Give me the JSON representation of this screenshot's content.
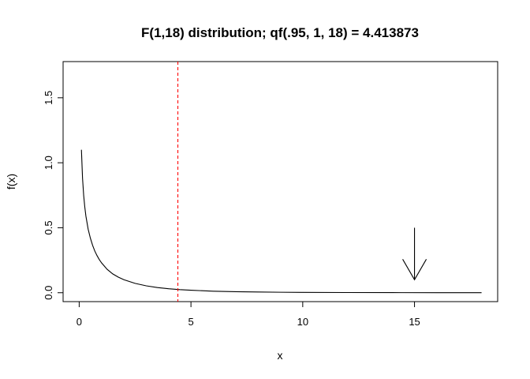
{
  "chart_data": {
    "type": "line",
    "title": "F(1,18) distribution; qf(.95, 1, 18) = 4.413873",
    "xlabel": "x",
    "ylabel": "f(x)",
    "xlim": [
      -0.72,
      18.72
    ],
    "ylim": [
      -0.0684,
      1.7784
    ],
    "xticks": [
      0,
      5,
      10,
      15
    ],
    "xtick_labels": [
      "0",
      "5",
      "10",
      "15"
    ],
    "yticks": [
      0.0,
      0.5,
      1.0,
      1.5
    ],
    "ytick_labels": [
      "0.0",
      "0.5",
      "1.0",
      "1.5"
    ],
    "grid": false,
    "series": [
      {
        "name": "",
        "color": "#000000",
        "x": [
          0.1,
          0.15,
          0.2,
          0.25,
          0.3,
          0.4,
          0.5,
          0.6,
          0.7,
          0.8,
          0.9,
          1.0,
          1.25,
          1.5,
          1.75,
          2.0,
          2.5,
          3.0,
          3.5,
          4.0,
          4.5,
          5.0,
          6.0,
          7.0,
          8.0,
          9.0,
          10.0,
          12.0,
          14.0,
          16.0,
          18.0
        ],
        "y": [
          1.1,
          0.88,
          0.75,
          0.66,
          0.59,
          0.49,
          0.42,
          0.365,
          0.32,
          0.285,
          0.255,
          0.23,
          0.18,
          0.145,
          0.12,
          0.1,
          0.072,
          0.053,
          0.04,
          0.031,
          0.024,
          0.019,
          0.012,
          0.008,
          0.0055,
          0.0038,
          0.0027,
          0.0014,
          0.0008,
          0.0004,
          0.0002
        ]
      }
    ],
    "vline": {
      "x": 4.413873,
      "color": "#ff0000",
      "style": "dashed"
    },
    "arrow": {
      "x": 15,
      "y_from": 0.5,
      "y_to": 0.1,
      "color": "#000000"
    }
  }
}
